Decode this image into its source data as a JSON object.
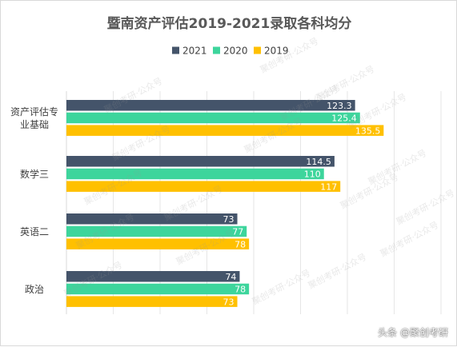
{
  "chart_data": {
    "type": "bar",
    "orientation": "horizontal",
    "title": "暨南资产评估2019-2021录取各科均分",
    "categories": [
      "资产评估专业基础",
      "数学三",
      "英语二",
      "政治"
    ],
    "series": [
      {
        "name": "2021",
        "color": "#44546a",
        "values": [
          123.3,
          114.5,
          73,
          74
        ],
        "labels": [
          "123.3",
          "114.5",
          "73",
          "74"
        ]
      },
      {
        "name": "2020",
        "color": "#3dd59c",
        "values": [
          125.4,
          110,
          77,
          78
        ],
        "labels": [
          "125.4",
          "110",
          "77",
          "78"
        ]
      },
      {
        "name": "2019",
        "color": "#ffc000",
        "values": [
          135.5,
          117,
          78,
          73
        ],
        "labels": [
          "135.5",
          "117",
          "78",
          "73"
        ]
      }
    ],
    "xlim": [
      0,
      160
    ],
    "legend_position": "top",
    "grid": true,
    "axis_tick_labels_shown": false
  },
  "watermark_text": "聚创考研·公众号",
  "credit": "头条 @聚创考研"
}
